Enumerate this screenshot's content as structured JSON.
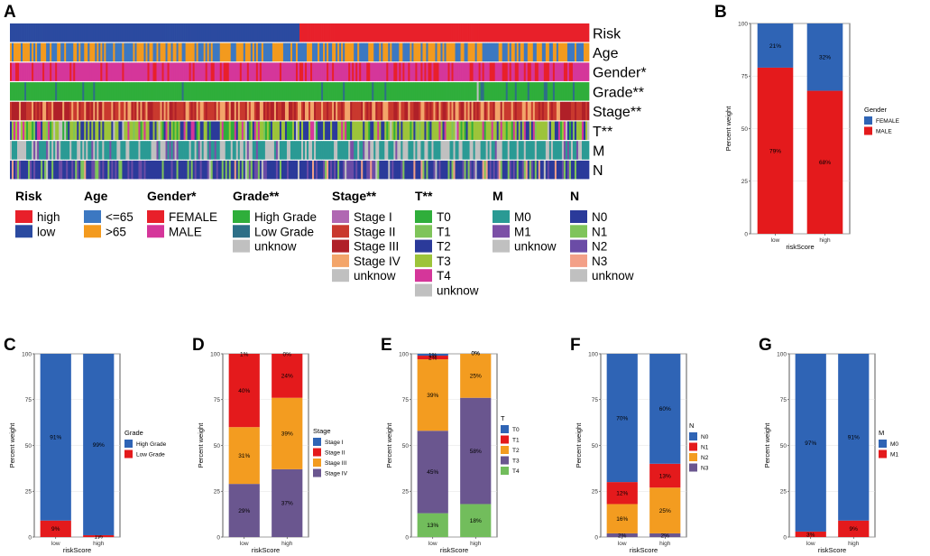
{
  "panels": {
    "A": "A",
    "B": "B",
    "C": "C",
    "D": "D",
    "E": "E",
    "F": "F",
    "G": "G"
  },
  "colors": {
    "high": "#e8202a",
    "low": "#2b4aa0",
    "le65": "#3c78c2",
    "gt65": "#f39a1e",
    "female": "#e8202a",
    "male": "#d5369a",
    "grade_high": "#2fae3b",
    "grade_low": "#2d6f87",
    "unknow": "#c0c0c0",
    "stage_i": "#b067b2",
    "stage_ii": "#c9392e",
    "stage_iii": "#b02028",
    "stage_iv": "#f3a56a",
    "t0": "#2fae3b",
    "t1": "#7fc45a",
    "t2": "#2b3a9a",
    "t3": "#9dc43a",
    "t4": "#d5369a",
    "m0": "#2a9a94",
    "m1": "#7b4fa6",
    "n0": "#2b3a9a",
    "n1": "#7fc45a",
    "n2": "#6b4ca6",
    "n3": "#f3a088",
    "bar_blue": "#2f64b5",
    "bar_red": "#e41a1c",
    "bar_orange": "#f39c20",
    "bar_purple": "#6a568f",
    "bar_green": "#72bd5c"
  },
  "heatmap": {
    "tracks": [
      "Risk",
      "Age",
      "Gender*",
      "Grade**",
      "Stage**",
      "T**",
      "M",
      "N"
    ],
    "legends": [
      {
        "title": "Risk",
        "items": [
          {
            "label": "high",
            "color": "#e8202a"
          },
          {
            "label": "low",
            "color": "#2b4aa0"
          }
        ]
      },
      {
        "title": "Age",
        "items": [
          {
            "label": "<=65",
            "color": "#3c78c2"
          },
          {
            "label": ">65",
            "color": "#f39a1e"
          }
        ]
      },
      {
        "title": "Gender*",
        "items": [
          {
            "label": "FEMALE",
            "color": "#e8202a"
          },
          {
            "label": "MALE",
            "color": "#d5369a"
          }
        ]
      },
      {
        "title": "Grade**",
        "items": [
          {
            "label": "High Grade",
            "color": "#2fae3b"
          },
          {
            "label": "Low Grade",
            "color": "#2d6f87"
          },
          {
            "label": "unknow",
            "color": "#c0c0c0"
          }
        ]
      },
      {
        "title": "Stage**",
        "items": [
          {
            "label": "Stage I",
            "color": "#b067b2"
          },
          {
            "label": "Stage II",
            "color": "#c9392e"
          },
          {
            "label": "Stage III",
            "color": "#b02028"
          },
          {
            "label": "Stage IV",
            "color": "#f3a56a"
          },
          {
            "label": "unknow",
            "color": "#c0c0c0"
          }
        ]
      },
      {
        "title": "T**",
        "items": [
          {
            "label": "T0",
            "color": "#2fae3b"
          },
          {
            "label": "T1",
            "color": "#7fc45a"
          },
          {
            "label": "T2",
            "color": "#2b3a9a"
          },
          {
            "label": "T3",
            "color": "#9dc43a"
          },
          {
            "label": "T4",
            "color": "#d5369a"
          },
          {
            "label": "unknow",
            "color": "#c0c0c0"
          }
        ]
      },
      {
        "title": "M",
        "items": [
          {
            "label": "M0",
            "color": "#2a9a94"
          },
          {
            "label": "M1",
            "color": "#7b4fa6"
          },
          {
            "label": "unknow",
            "color": "#c0c0c0"
          }
        ]
      },
      {
        "title": "N",
        "items": [
          {
            "label": "N0",
            "color": "#2b3a9a"
          },
          {
            "label": "N1",
            "color": "#7fc45a"
          },
          {
            "label": "N2",
            "color": "#6b4ca6"
          },
          {
            "label": "N3",
            "color": "#f3a088"
          },
          {
            "label": "unknow",
            "color": "#c0c0c0"
          }
        ]
      }
    ]
  },
  "chart_data": [
    {
      "panel": "B",
      "type": "bar",
      "stacked": true,
      "categories": [
        "low",
        "high"
      ],
      "xlabel": "riskScore",
      "ylabel": "Percent weight",
      "yticks": [
        0,
        25,
        50,
        75,
        100
      ],
      "ylim": [
        0,
        100
      ],
      "legend_title": "Gender",
      "series": [
        {
          "name": "MALE",
          "color": "#e41a1c",
          "values": [
            79,
            68
          ],
          "labels": [
            "79%",
            "68%"
          ]
        },
        {
          "name": "FEMALE",
          "color": "#2f64b5",
          "values": [
            21,
            32
          ],
          "labels": [
            "21%",
            "32%"
          ]
        }
      ],
      "legend_order": [
        "FEMALE",
        "MALE"
      ]
    },
    {
      "panel": "C",
      "type": "bar",
      "stacked": true,
      "categories": [
        "low",
        "high"
      ],
      "xlabel": "riskScore",
      "ylabel": "Percent weight",
      "yticks": [
        0,
        25,
        50,
        75,
        100
      ],
      "ylim": [
        0,
        100
      ],
      "legend_title": "Grade",
      "series": [
        {
          "name": "Low Grade",
          "color": "#e41a1c",
          "values": [
            9,
            1
          ],
          "labels": [
            "9%",
            "1%"
          ]
        },
        {
          "name": "High Grade",
          "color": "#2f64b5",
          "values": [
            91,
            99
          ],
          "labels": [
            "91%",
            "99%"
          ]
        }
      ],
      "legend_order": [
        "High Grade",
        "Low Grade"
      ]
    },
    {
      "panel": "D",
      "type": "bar",
      "stacked": true,
      "categories": [
        "low",
        "high"
      ],
      "xlabel": "riskScore",
      "ylabel": "Percent weight",
      "yticks": [
        0,
        25,
        50,
        75,
        100
      ],
      "ylim": [
        0,
        100
      ],
      "legend_title": "Stage",
      "series": [
        {
          "name": "Stage IV",
          "color": "#6a568f",
          "values": [
            29,
            37
          ],
          "labels": [
            "29%",
            "37%"
          ]
        },
        {
          "name": "Stage III",
          "color": "#f39c20",
          "values": [
            31,
            39
          ],
          "labels": [
            "31%",
            "39%"
          ]
        },
        {
          "name": "Stage II",
          "color": "#e41a1c",
          "values": [
            40,
            24
          ],
          "labels": [
            "40%",
            "24%"
          ]
        },
        {
          "name": "Stage I",
          "color": "#2f64b5",
          "values": [
            1,
            0
          ],
          "labels": [
            "1%",
            "0%"
          ]
        }
      ],
      "legend_order": [
        "Stage I",
        "Stage II",
        "Stage III",
        "Stage IV"
      ]
    },
    {
      "panel": "E",
      "type": "bar",
      "stacked": true,
      "categories": [
        "low",
        "high"
      ],
      "xlabel": "riskScore",
      "ylabel": "Percent weight",
      "yticks": [
        0,
        25,
        50,
        75,
        100
      ],
      "ylim": [
        0,
        100
      ],
      "legend_title": "T",
      "series": [
        {
          "name": "T4",
          "color": "#72bd5c",
          "values": [
            13,
            18
          ],
          "labels": [
            "13%",
            "18%"
          ]
        },
        {
          "name": "T3",
          "color": "#6a568f",
          "values": [
            45,
            58
          ],
          "labels": [
            "45%",
            "58%"
          ]
        },
        {
          "name": "T2",
          "color": "#f39c20",
          "values": [
            39,
            25
          ],
          "labels": [
            "39%",
            "25%"
          ]
        },
        {
          "name": "T1",
          "color": "#e41a1c",
          "values": [
            2,
            0
          ],
          "labels": [
            "2%",
            "0%"
          ]
        },
        {
          "name": "T0",
          "color": "#2f64b5",
          "values": [
            1,
            0
          ],
          "labels": [
            "1%",
            "0%"
          ]
        }
      ],
      "legend_order": [
        "T0",
        "T1",
        "T2",
        "T3",
        "T4"
      ]
    },
    {
      "panel": "F",
      "type": "bar",
      "stacked": true,
      "categories": [
        "low",
        "high"
      ],
      "xlabel": "riskScore",
      "ylabel": "Percent weight",
      "yticks": [
        0,
        25,
        50,
        75,
        100
      ],
      "ylim": [
        0,
        100
      ],
      "legend_title": "N",
      "series": [
        {
          "name": "N3",
          "color": "#6a568f",
          "values": [
            2,
            2
          ],
          "labels": [
            "2%",
            "2%"
          ]
        },
        {
          "name": "N2",
          "color": "#f39c20",
          "values": [
            16,
            25
          ],
          "labels": [
            "16%",
            "25%"
          ]
        },
        {
          "name": "N1",
          "color": "#e41a1c",
          "values": [
            12,
            13
          ],
          "labels": [
            "12%",
            "13%"
          ]
        },
        {
          "name": "N0",
          "color": "#2f64b5",
          "values": [
            70,
            60
          ],
          "labels": [
            "70%",
            "60%"
          ]
        }
      ],
      "legend_order": [
        "N0",
        "N1",
        "N2",
        "N3"
      ]
    },
    {
      "panel": "G",
      "type": "bar",
      "stacked": true,
      "categories": [
        "low",
        "high"
      ],
      "xlabel": "riskScore",
      "ylabel": "Percent weight",
      "yticks": [
        0,
        25,
        50,
        75,
        100
      ],
      "ylim": [
        0,
        100
      ],
      "legend_title": "M",
      "series": [
        {
          "name": "M1",
          "color": "#e41a1c",
          "values": [
            3,
            9
          ],
          "labels": [
            "3%",
            "9%"
          ]
        },
        {
          "name": "M0",
          "color": "#2f64b5",
          "values": [
            97,
            91
          ],
          "labels": [
            "97%",
            "91%"
          ]
        }
      ],
      "legend_order": [
        "M0",
        "M1"
      ]
    }
  ]
}
